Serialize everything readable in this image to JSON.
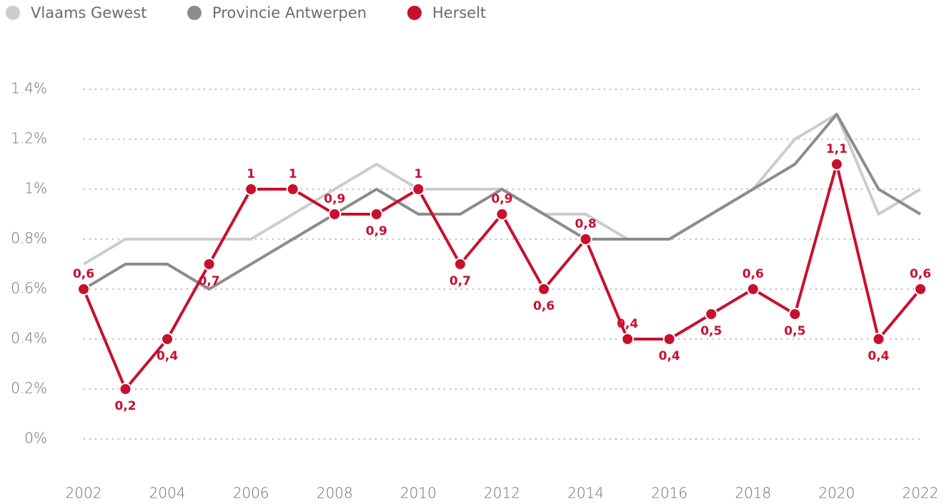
{
  "chart_data": {
    "type": "line",
    "x": [
      2002,
      2003,
      2004,
      2005,
      2006,
      2007,
      2008,
      2009,
      2010,
      2011,
      2012,
      2013,
      2014,
      2015,
      2016,
      2017,
      2018,
      2019,
      2020,
      2021,
      2022
    ],
    "xlim": [
      2002,
      2022
    ],
    "xticks": [
      2002,
      2004,
      2006,
      2008,
      2010,
      2012,
      2014,
      2016,
      2018,
      2020,
      2022
    ],
    "ylim": [
      0,
      1.4
    ],
    "yticks": [
      {
        "value": 0,
        "label": "0%"
      },
      {
        "value": 0.2,
        "label": "0.2%"
      },
      {
        "value": 0.4,
        "label": "0.4%"
      },
      {
        "value": 0.6,
        "label": "0.6%"
      },
      {
        "value": 0.8,
        "label": "0.8%"
      },
      {
        "value": 1,
        "label": "1%"
      },
      {
        "value": 1.2,
        "label": "1.2%"
      },
      {
        "value": 1.4,
        "label": "1.4%"
      }
    ],
    "grid": true,
    "series": [
      {
        "name": "Vlaams Gewest",
        "color": "#cccccc",
        "values": [
          0.7,
          0.8,
          0.8,
          0.8,
          0.8,
          0.9,
          1.0,
          1.1,
          1.0,
          1.0,
          1.0,
          0.9,
          0.9,
          0.8,
          0.8,
          0.9,
          1.0,
          1.2,
          1.3,
          0.9,
          1.0
        ]
      },
      {
        "name": "Provincie Antwerpen",
        "color": "#8c8c8c",
        "values": [
          0.6,
          0.7,
          0.7,
          0.6,
          0.7,
          0.8,
          0.9,
          1.0,
          0.9,
          0.9,
          1.0,
          0.9,
          0.8,
          0.8,
          0.8,
          0.9,
          1.0,
          1.1,
          1.3,
          1.0,
          0.9
        ]
      },
      {
        "name": "Herselt",
        "color": "#c8102e",
        "markers": true,
        "values": [
          0.6,
          0.2,
          0.4,
          0.7,
          1,
          1,
          0.9,
          0.9,
          1,
          0.7,
          0.9,
          0.6,
          0.8,
          0.4,
          0.4,
          0.5,
          0.6,
          0.5,
          1.1,
          0.4,
          0.6
        ],
        "value_labels": [
          "0,6",
          "0,2",
          "0,4",
          "0,7",
          "1",
          "1",
          "0,9",
          "0,9",
          "1",
          "0,7",
          "0,9",
          "0,6",
          "0,8",
          "0,4",
          "0,4",
          "0,5",
          "0,6",
          "0,5",
          "1,1",
          "0,4",
          "0,6"
        ]
      }
    ]
  }
}
